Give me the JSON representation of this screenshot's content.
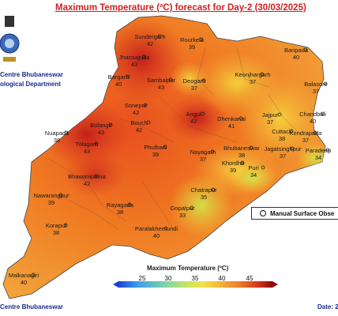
{
  "title": "Maximum Temperature (ºC) forecast for Day-2 (30/03/2025)",
  "org": {
    "line1": "Centre Bhubaneswar",
    "line2": "ological Department"
  },
  "legend": {
    "label": "Manual Surface Obse"
  },
  "colorbar": {
    "title": "Maximum Temperature (ºC)",
    "ticks": [
      "25",
      "30",
      "35",
      "40",
      "45"
    ],
    "colors": [
      "#1e3fd6",
      "#3b9cf0",
      "#7bd3a8",
      "#c8e85c",
      "#f2e04a",
      "#f4b93a",
      "#ee7f2a",
      "#d93a1f",
      "#8a0a0a"
    ]
  },
  "footer": {
    "left": "Centre Bhubaneswar",
    "right": "Date: 2"
  },
  "stations": [
    {
      "name": "Sundergarh",
      "value": "42"
    },
    {
      "name": "Jharsuguda",
      "value": "43"
    },
    {
      "name": "Rourkela",
      "value": "39"
    },
    {
      "name": "Baripada",
      "value": "40"
    },
    {
      "name": "Bargarh",
      "value": "40"
    },
    {
      "name": "Sambalpur",
      "value": "43"
    },
    {
      "name": "Deogarh",
      "value": "37"
    },
    {
      "name": "Keonjhargarh",
      "value": "37"
    },
    {
      "name": "Balasore",
      "value": "37"
    },
    {
      "name": "Sonepur",
      "value": "42"
    },
    {
      "name": "Bolangir",
      "value": "43"
    },
    {
      "name": "Bouch",
      "value": "42"
    },
    {
      "name": "Angul",
      "value": "42"
    },
    {
      "name": "Dhenkanal",
      "value": "41"
    },
    {
      "name": "Jajpur",
      "value": "37"
    },
    {
      "name": "Chandbali",
      "value": "40"
    },
    {
      "name": "Nuapada",
      "value": "38"
    },
    {
      "name": "Titlagarh",
      "value": "43"
    },
    {
      "name": "Cuttack",
      "value": "38"
    },
    {
      "name": "Kendrapada",
      "value": "37"
    },
    {
      "name": "Phulbani",
      "value": "39"
    },
    {
      "name": "Nayagarh",
      "value": "37"
    },
    {
      "name": "Bhubaneswar",
      "value": "38"
    },
    {
      "name": "Jagatsinghpur",
      "value": "37"
    },
    {
      "name": "Paradeep",
      "value": "34"
    },
    {
      "name": "Khordha",
      "value": "39"
    },
    {
      "name": "Bhawanipatna",
      "value": "42"
    },
    {
      "name": "Puri",
      "value": "34"
    },
    {
      "name": "Nawarangpur",
      "value": "39"
    },
    {
      "name": "Rayagada",
      "value": "38"
    },
    {
      "name": "Chatrapur",
      "value": "35"
    },
    {
      "name": "Koraput",
      "value": "38"
    },
    {
      "name": "Gopalpur",
      "value": "33"
    },
    {
      "name": "Paralakhemundi",
      "value": "40"
    },
    {
      "name": "Malkanagiri",
      "value": "40"
    }
  ]
}
